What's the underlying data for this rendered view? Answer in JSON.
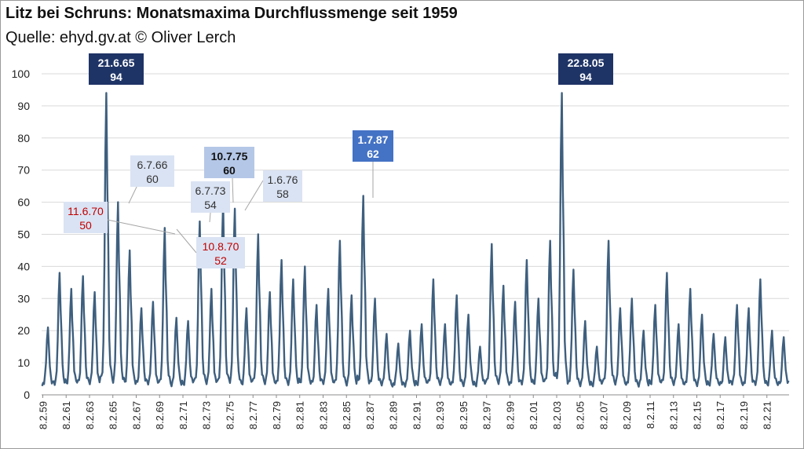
{
  "title": "Litz bei Schruns: Monatsmaxima Durchflussmenge seit 1959",
  "subtitle": "Quelle: ehyd.gv.at © Oliver Lerch",
  "colors": {
    "line": "#3e5f7e",
    "grid": "#d9d9d9",
    "annotation_dark": "#1f3466",
    "annotation_mid": "#4472c4",
    "annotation_pale": "#b4c7e7",
    "annotation_light": "#dae3f3",
    "annotation_red_text": "#c00000",
    "leader": "#a6a6a6"
  },
  "chart_data": {
    "type": "line",
    "title": "Litz bei Schruns: Monatsmaxima Durchflussmenge seit 1959",
    "xlabel": "",
    "ylabel": "",
    "ylim": [
      0,
      100
    ],
    "yticks": [
      0,
      10,
      20,
      30,
      40,
      50,
      60,
      70,
      80,
      90,
      100
    ],
    "grid": "horizontal",
    "x_start_year": 1959,
    "x_end_year": 2023,
    "xtick_labels": [
      "8.2.59",
      "8.2.61",
      "8.2.63",
      "8.2.65",
      "8.2.67",
      "8.2.69",
      "8.2.71",
      "8.2.73",
      "8.2.75",
      "8.2.77",
      "8.2.79",
      "8.2.81",
      "8.2.83",
      "8.2.85",
      "8.2.87",
      "8.2.89",
      "8.2.91",
      "8.2.93",
      "8.2.95",
      "8.2.97",
      "8.2.99",
      "8.2.01",
      "8.2.03",
      "8.2.05",
      "8.2.07",
      "8.2.09",
      "8.2.11",
      "8.2.13",
      "8.2.15",
      "8.2.17",
      "8.2.19",
      "8.2.21"
    ],
    "series": [
      {
        "annual_peaks": [
          21,
          38,
          33,
          37,
          32,
          94,
          60,
          45,
          27,
          29,
          52,
          24,
          23,
          54,
          33,
          60,
          58,
          27,
          50,
          32,
          42,
          36,
          40,
          28,
          33,
          48,
          31,
          62,
          30,
          19,
          16,
          20,
          22,
          36,
          22,
          31,
          25,
          15,
          47,
          34,
          29,
          42,
          30,
          48,
          94,
          39,
          23,
          15,
          48,
          27,
          30,
          20,
          28,
          38,
          22,
          33,
          25,
          19,
          18,
          28,
          27,
          36,
          20,
          18
        ],
        "baseline": 2
      }
    ],
    "annotations": [
      {
        "date": "21.6.65",
        "value": "94",
        "style": "dark"
      },
      {
        "date": "22.8.05",
        "value": "94",
        "style": "dark"
      },
      {
        "date": "1.7.87",
        "value": "62",
        "style": "mid"
      },
      {
        "date": "10.7.75",
        "value": "60",
        "style": "pale"
      },
      {
        "date": "6.7.66",
        "value": "60",
        "style": "light"
      },
      {
        "date": "6.7.73",
        "value": "54",
        "style": "light"
      },
      {
        "date": "1.6.76",
        "value": "58",
        "style": "light"
      },
      {
        "date": "11.6.70",
        "value": "50",
        "style": "light-red"
      },
      {
        "date": "10.8.70",
        "value": "52",
        "style": "light-red"
      }
    ]
  }
}
